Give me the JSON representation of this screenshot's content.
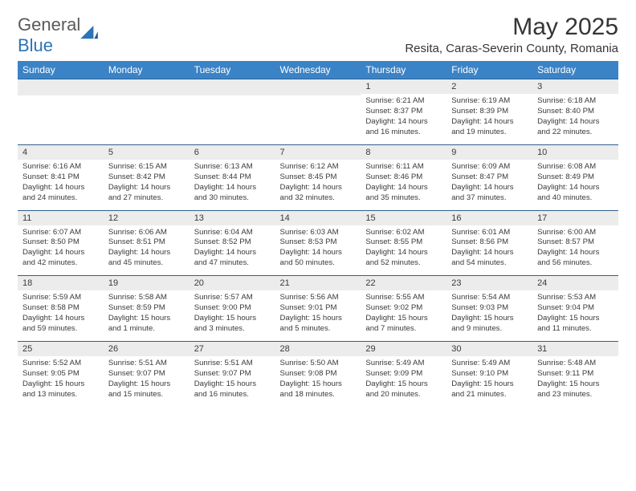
{
  "brand": {
    "name_gray": "General",
    "name_blue": "Blue"
  },
  "title": "May 2025",
  "location": "Resita, Caras-Severin County, Romania",
  "colors": {
    "header_bg": "#3b83c7",
    "header_text": "#ffffff",
    "row_border": "#2f5f8f",
    "daynum_bg": "#ececec",
    "text": "#3a3a3a",
    "logo_gray": "#5a5a5a",
    "logo_blue": "#2a74b8",
    "page_bg": "#ffffff"
  },
  "weekdays": [
    "Sunday",
    "Monday",
    "Tuesday",
    "Wednesday",
    "Thursday",
    "Friday",
    "Saturday"
  ],
  "weeks": [
    [
      {
        "n": "",
        "sr": "",
        "ss": "",
        "dl": ""
      },
      {
        "n": "",
        "sr": "",
        "ss": "",
        "dl": ""
      },
      {
        "n": "",
        "sr": "",
        "ss": "",
        "dl": ""
      },
      {
        "n": "",
        "sr": "",
        "ss": "",
        "dl": ""
      },
      {
        "n": "1",
        "sr": "Sunrise: 6:21 AM",
        "ss": "Sunset: 8:37 PM",
        "dl": "Daylight: 14 hours and 16 minutes."
      },
      {
        "n": "2",
        "sr": "Sunrise: 6:19 AM",
        "ss": "Sunset: 8:39 PM",
        "dl": "Daylight: 14 hours and 19 minutes."
      },
      {
        "n": "3",
        "sr": "Sunrise: 6:18 AM",
        "ss": "Sunset: 8:40 PM",
        "dl": "Daylight: 14 hours and 22 minutes."
      }
    ],
    [
      {
        "n": "4",
        "sr": "Sunrise: 6:16 AM",
        "ss": "Sunset: 8:41 PM",
        "dl": "Daylight: 14 hours and 24 minutes."
      },
      {
        "n": "5",
        "sr": "Sunrise: 6:15 AM",
        "ss": "Sunset: 8:42 PM",
        "dl": "Daylight: 14 hours and 27 minutes."
      },
      {
        "n": "6",
        "sr": "Sunrise: 6:13 AM",
        "ss": "Sunset: 8:44 PM",
        "dl": "Daylight: 14 hours and 30 minutes."
      },
      {
        "n": "7",
        "sr": "Sunrise: 6:12 AM",
        "ss": "Sunset: 8:45 PM",
        "dl": "Daylight: 14 hours and 32 minutes."
      },
      {
        "n": "8",
        "sr": "Sunrise: 6:11 AM",
        "ss": "Sunset: 8:46 PM",
        "dl": "Daylight: 14 hours and 35 minutes."
      },
      {
        "n": "9",
        "sr": "Sunrise: 6:09 AM",
        "ss": "Sunset: 8:47 PM",
        "dl": "Daylight: 14 hours and 37 minutes."
      },
      {
        "n": "10",
        "sr": "Sunrise: 6:08 AM",
        "ss": "Sunset: 8:49 PM",
        "dl": "Daylight: 14 hours and 40 minutes."
      }
    ],
    [
      {
        "n": "11",
        "sr": "Sunrise: 6:07 AM",
        "ss": "Sunset: 8:50 PM",
        "dl": "Daylight: 14 hours and 42 minutes."
      },
      {
        "n": "12",
        "sr": "Sunrise: 6:06 AM",
        "ss": "Sunset: 8:51 PM",
        "dl": "Daylight: 14 hours and 45 minutes."
      },
      {
        "n": "13",
        "sr": "Sunrise: 6:04 AM",
        "ss": "Sunset: 8:52 PM",
        "dl": "Daylight: 14 hours and 47 minutes."
      },
      {
        "n": "14",
        "sr": "Sunrise: 6:03 AM",
        "ss": "Sunset: 8:53 PM",
        "dl": "Daylight: 14 hours and 50 minutes."
      },
      {
        "n": "15",
        "sr": "Sunrise: 6:02 AM",
        "ss": "Sunset: 8:55 PM",
        "dl": "Daylight: 14 hours and 52 minutes."
      },
      {
        "n": "16",
        "sr": "Sunrise: 6:01 AM",
        "ss": "Sunset: 8:56 PM",
        "dl": "Daylight: 14 hours and 54 minutes."
      },
      {
        "n": "17",
        "sr": "Sunrise: 6:00 AM",
        "ss": "Sunset: 8:57 PM",
        "dl": "Daylight: 14 hours and 56 minutes."
      }
    ],
    [
      {
        "n": "18",
        "sr": "Sunrise: 5:59 AM",
        "ss": "Sunset: 8:58 PM",
        "dl": "Daylight: 14 hours and 59 minutes."
      },
      {
        "n": "19",
        "sr": "Sunrise: 5:58 AM",
        "ss": "Sunset: 8:59 PM",
        "dl": "Daylight: 15 hours and 1 minute."
      },
      {
        "n": "20",
        "sr": "Sunrise: 5:57 AM",
        "ss": "Sunset: 9:00 PM",
        "dl": "Daylight: 15 hours and 3 minutes."
      },
      {
        "n": "21",
        "sr": "Sunrise: 5:56 AM",
        "ss": "Sunset: 9:01 PM",
        "dl": "Daylight: 15 hours and 5 minutes."
      },
      {
        "n": "22",
        "sr": "Sunrise: 5:55 AM",
        "ss": "Sunset: 9:02 PM",
        "dl": "Daylight: 15 hours and 7 minutes."
      },
      {
        "n": "23",
        "sr": "Sunrise: 5:54 AM",
        "ss": "Sunset: 9:03 PM",
        "dl": "Daylight: 15 hours and 9 minutes."
      },
      {
        "n": "24",
        "sr": "Sunrise: 5:53 AM",
        "ss": "Sunset: 9:04 PM",
        "dl": "Daylight: 15 hours and 11 minutes."
      }
    ],
    [
      {
        "n": "25",
        "sr": "Sunrise: 5:52 AM",
        "ss": "Sunset: 9:05 PM",
        "dl": "Daylight: 15 hours and 13 minutes."
      },
      {
        "n": "26",
        "sr": "Sunrise: 5:51 AM",
        "ss": "Sunset: 9:07 PM",
        "dl": "Daylight: 15 hours and 15 minutes."
      },
      {
        "n": "27",
        "sr": "Sunrise: 5:51 AM",
        "ss": "Sunset: 9:07 PM",
        "dl": "Daylight: 15 hours and 16 minutes."
      },
      {
        "n": "28",
        "sr": "Sunrise: 5:50 AM",
        "ss": "Sunset: 9:08 PM",
        "dl": "Daylight: 15 hours and 18 minutes."
      },
      {
        "n": "29",
        "sr": "Sunrise: 5:49 AM",
        "ss": "Sunset: 9:09 PM",
        "dl": "Daylight: 15 hours and 20 minutes."
      },
      {
        "n": "30",
        "sr": "Sunrise: 5:49 AM",
        "ss": "Sunset: 9:10 PM",
        "dl": "Daylight: 15 hours and 21 minutes."
      },
      {
        "n": "31",
        "sr": "Sunrise: 5:48 AM",
        "ss": "Sunset: 9:11 PM",
        "dl": "Daylight: 15 hours and 23 minutes."
      }
    ]
  ]
}
